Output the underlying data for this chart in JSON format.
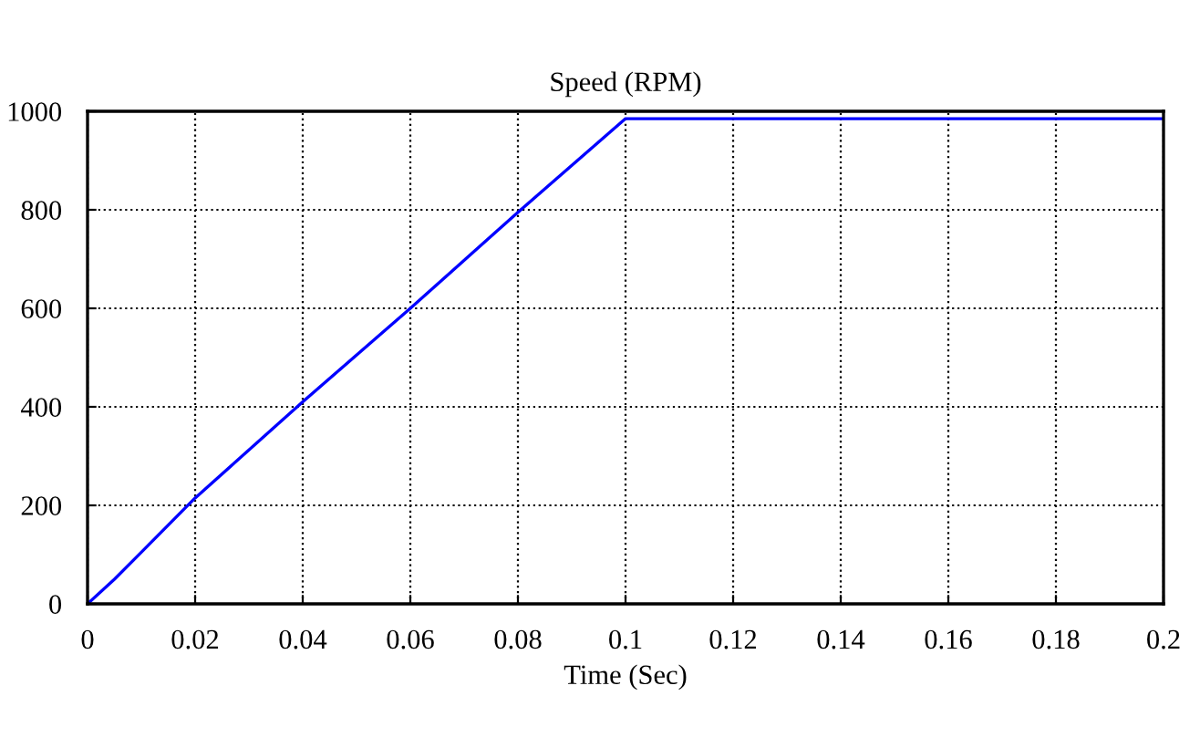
{
  "chart_data": {
    "type": "line",
    "title": "Speed (RPM)",
    "xlabel": "Time (Sec)",
    "x": [
      0,
      0.005,
      0.01,
      0.015,
      0.02,
      0.04,
      0.06,
      0.08,
      0.1,
      0.2
    ],
    "series": [
      {
        "color": "#0000ff",
        "values": [
          0,
          50,
          105,
          160,
          215,
          410,
          600,
          795,
          985,
          985
        ]
      }
    ],
    "xlim": [
      0,
      0.2
    ],
    "xticks": [
      0,
      0.02,
      0.04,
      0.06,
      0.08,
      {
        "value": 0.1,
        "label": "0.1"
      },
      0.12,
      0.14,
      0.16,
      0.18,
      {
        "value": 0.2,
        "label": "0.2"
      }
    ],
    "ylim": [
      0,
      1000
    ],
    "yticks": [
      0,
      200,
      400,
      600,
      800,
      1000
    ],
    "grid": true,
    "line_style": "solid",
    "marker": "none"
  }
}
